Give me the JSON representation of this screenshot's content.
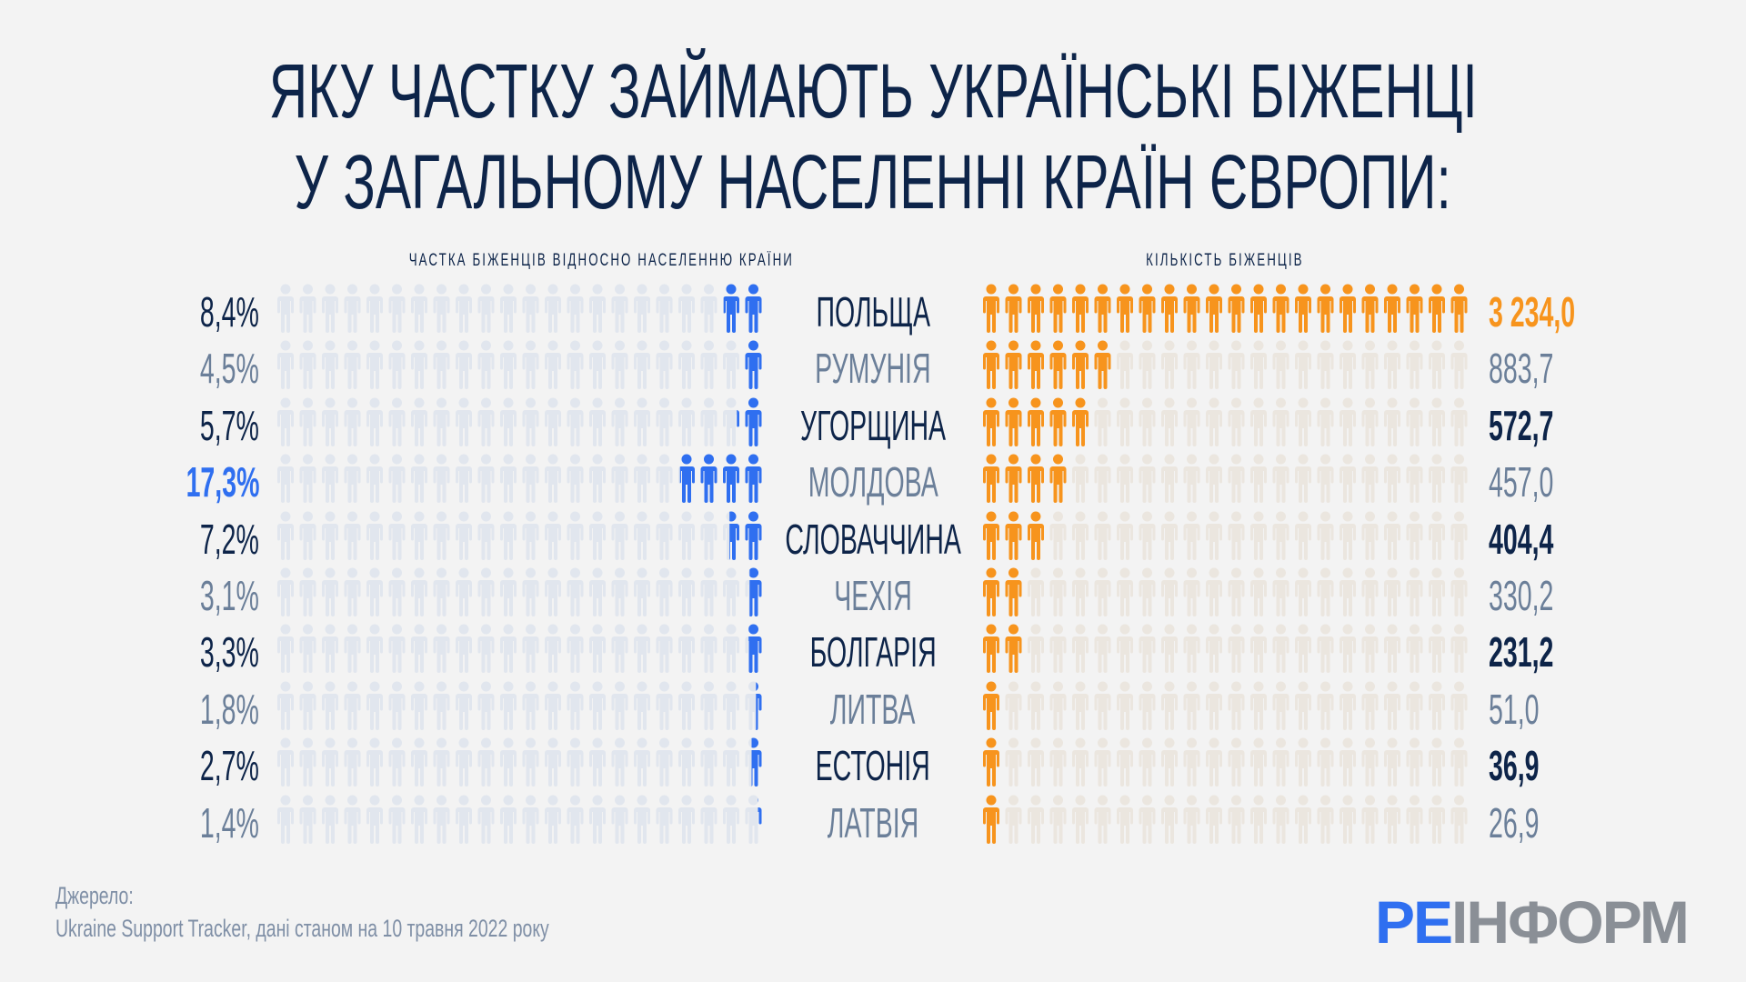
{
  "title": {
    "line1": "ЯКУ ЧАСТКУ ЗАЙМАЮТЬ УКРАЇНСЬКІ БІЖЕНЦІ",
    "line2": "У ЗАГАЛЬНОМУ НАСЕЛЕННІ КРАЇН ЄВРОПИ:"
  },
  "colors": {
    "blue": "#2f6ff0",
    "orange": "#f7941d",
    "blue_empty": "#e1e6ee",
    "orange_empty": "#ebe6df",
    "navy": "#0d2449"
  },
  "chart_data": {
    "type": "pictogram",
    "left_label": "ЧАСТКА БІЖЕНЦІВ ВІДНОСНО НАСЕЛЕННЮ КРАЇНИ",
    "right_label": "КІЛЬКІСТЬ БІЖЕНЦІВ",
    "icons_per_row": 22,
    "rows": [
      {
        "country": "ПОЛЬЩА",
        "share": "8,4%",
        "share_value": 8.4,
        "refugees": "3 234,0",
        "refugees_value": 3234.0,
        "orange_icons": 22
      },
      {
        "country": "РУМУНІЯ",
        "share": "4,5%",
        "share_value": 4.5,
        "refugees": "883,7",
        "refugees_value": 883.7,
        "orange_icons": 6
      },
      {
        "country": "УГОРЩИНА",
        "share": "5,7%",
        "share_value": 5.7,
        "refugees": "572,7",
        "refugees_value": 572.7,
        "orange_icons": 5
      },
      {
        "country": "МОЛДОВА",
        "share": "17,3%",
        "share_value": 17.3,
        "refugees": "457,0",
        "refugees_value": 457.0,
        "orange_icons": 4
      },
      {
        "country": "СЛОВАЧЧИНА",
        "share": "7,2%",
        "share_value": 7.2,
        "refugees": "404,4",
        "refugees_value": 404.4,
        "orange_icons": 3
      },
      {
        "country": "ЧЕХІЯ",
        "share": "3,1%",
        "share_value": 3.1,
        "refugees": "330,2",
        "refugees_value": 330.2,
        "orange_icons": 2
      },
      {
        "country": "БОЛГАРІЯ",
        "share": "3,3%",
        "share_value": 3.3,
        "refugees": "231,2",
        "refugees_value": 231.2,
        "orange_icons": 2
      },
      {
        "country": "ЛИТВА",
        "share": "1,8%",
        "share_value": 1.8,
        "refugees": "51,0",
        "refugees_value": 51.0,
        "orange_icons": 1
      },
      {
        "country": "ЕСТОНІЯ",
        "share": "2,7%",
        "share_value": 2.7,
        "refugees": "36,9",
        "refugees_value": 36.9,
        "orange_icons": 1
      },
      {
        "country": "ЛАТВІЯ",
        "share": "1,4%",
        "share_value": 1.4,
        "refugees": "26,9",
        "refugees_value": 26.9,
        "orange_icons": 1
      }
    ]
  },
  "source": {
    "label": "Джерело:",
    "text": "Ukraine Support Tracker, дані станом на 10 травня 2022 року"
  },
  "logo": {
    "part1": "РЕ",
    "part2": "ІНФОРМ"
  }
}
